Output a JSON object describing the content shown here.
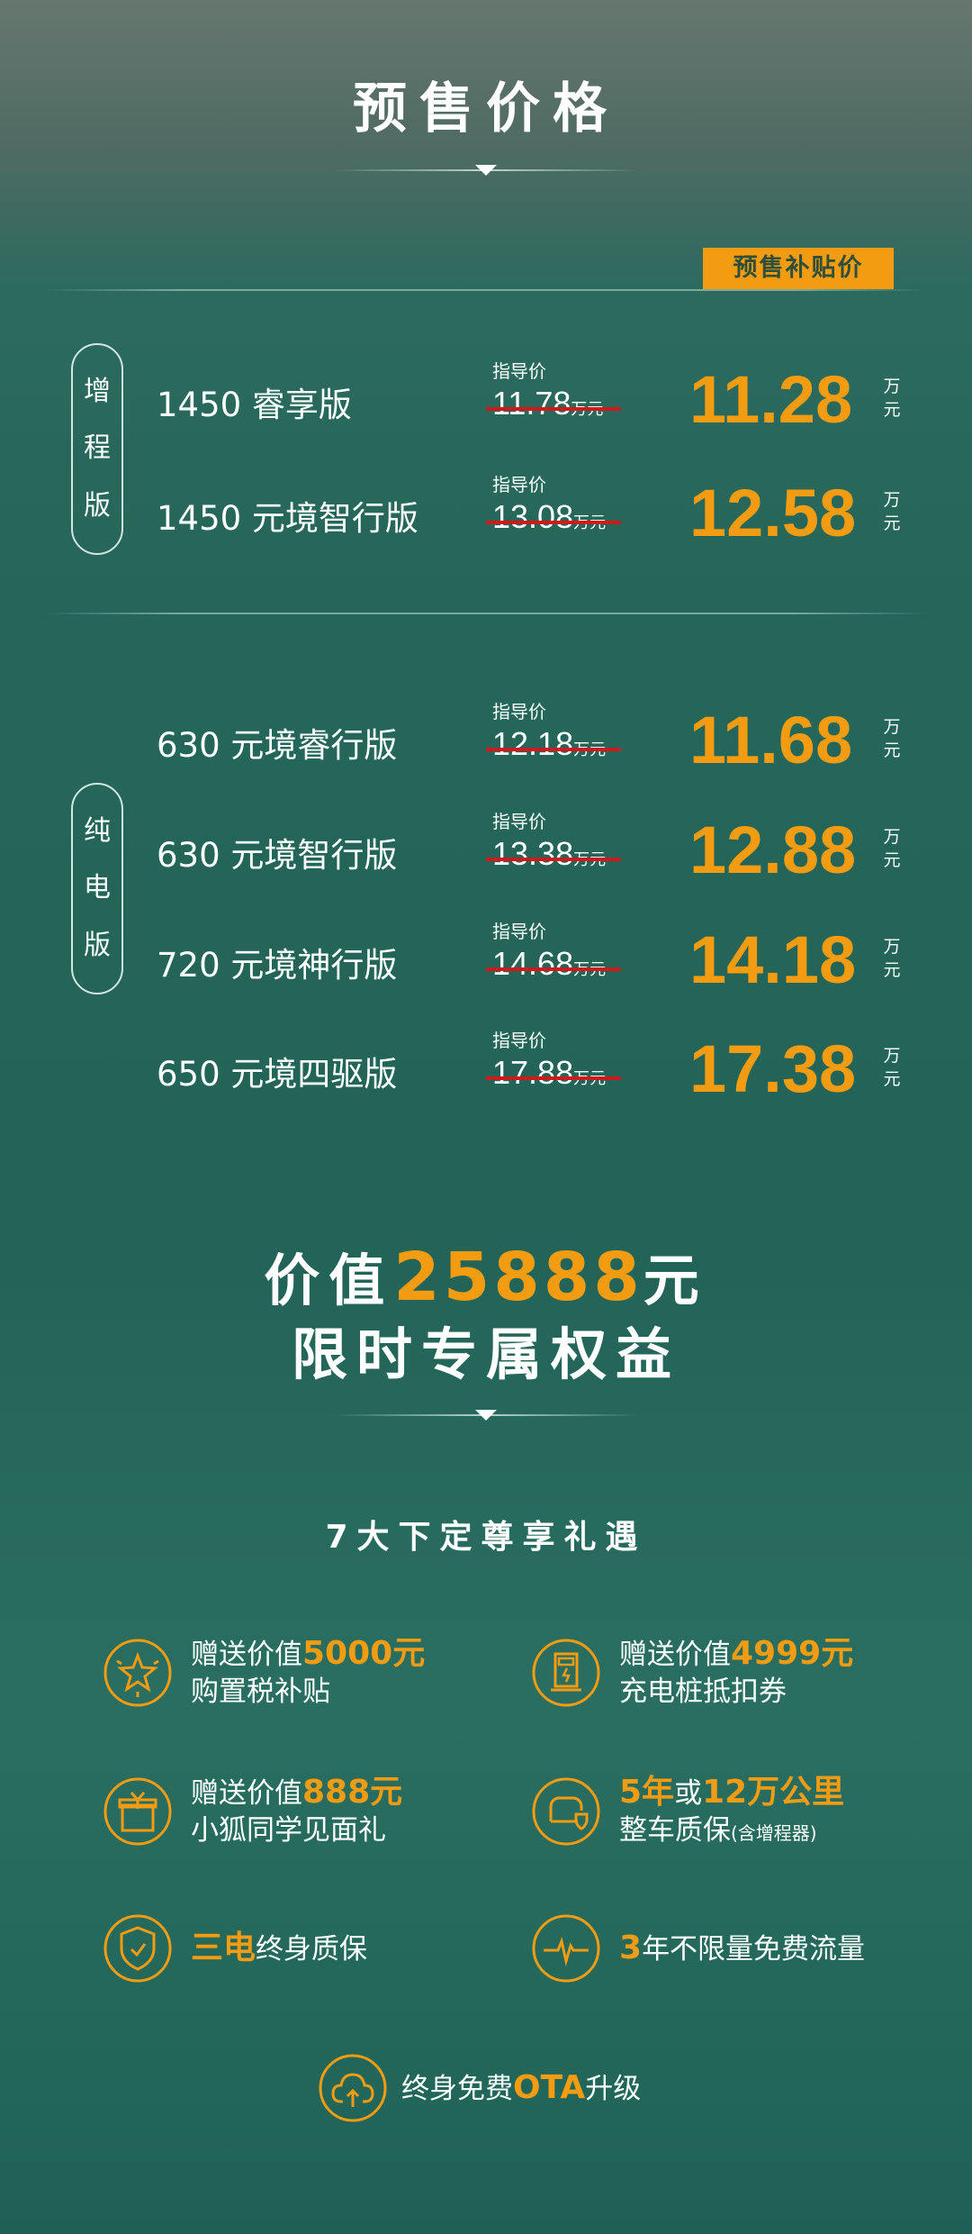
{
  "header": {
    "title": "预售价格"
  },
  "badge": "预售补贴价",
  "groups": [
    {
      "label": [
        "增",
        "程",
        "版"
      ]
    },
    {
      "label": [
        "纯",
        "电",
        "版"
      ]
    }
  ],
  "guide_label": "指导价",
  "unit": "万元",
  "unit_chars": [
    "万",
    "元"
  ],
  "rows": [
    {
      "model": "1450 睿享版",
      "guide": "11.78",
      "price": "11.28"
    },
    {
      "model": "1450 元境智行版",
      "guide": "13.08",
      "price": "12.58"
    },
    {
      "model": "630 元境睿行版",
      "guide": "12.18",
      "price": "11.68"
    },
    {
      "model": "630 元境智行版",
      "guide": "13.38",
      "price": "12.88"
    },
    {
      "model": "720 元境神行版",
      "guide": "14.68",
      "price": "14.18"
    },
    {
      "model": "650 元境四驱版",
      "guide": "17.88",
      "price": "17.38"
    }
  ],
  "value": {
    "prefix": "价值",
    "amount": "25888",
    "suffix": "元",
    "line2": "限时专属权益"
  },
  "benefits_title": "7大下定尊享礼遇",
  "benefits": [
    {
      "icon": "star-badge-icon",
      "lines": [
        [
          {
            "t": "赠送价值"
          },
          {
            "t": "5000元",
            "hl": true
          }
        ],
        [
          {
            "t": "购置税补贴"
          }
        ]
      ]
    },
    {
      "icon": "charging-pile-icon",
      "lines": [
        [
          {
            "t": "赠送价值"
          },
          {
            "t": "4999元",
            "hl": true
          }
        ],
        [
          {
            "t": "充电桩抵扣券"
          }
        ]
      ]
    },
    {
      "icon": "gift-box-icon",
      "lines": [
        [
          {
            "t": "赠送价值"
          },
          {
            "t": "888元",
            "hl": true
          }
        ],
        [
          {
            "t": "小狐同学见面礼"
          }
        ]
      ]
    },
    {
      "icon": "car-shield-icon",
      "lines": [
        [
          {
            "t": "5年",
            "hl": true
          },
          {
            "t": "或"
          },
          {
            "t": "12万公里",
            "hl": true
          }
        ],
        [
          {
            "t": "整车质保"
          },
          {
            "t": "(含增程器)",
            "sm": true
          }
        ]
      ]
    },
    {
      "icon": "shield-check-icon",
      "lines": [
        [
          {
            "t": "三电",
            "hl": true
          },
          {
            "t": "终身质保"
          }
        ]
      ]
    },
    {
      "icon": "pulse-icon",
      "lines": [
        [
          {
            "t": "3",
            "hl": true
          },
          {
            "t": "年不限量免费流量"
          }
        ]
      ]
    },
    {
      "icon": "cloud-upload-icon",
      "lines": [
        [
          {
            "t": "终身免费"
          },
          {
            "t": "OTA",
            "hl": true
          },
          {
            "t": "升级"
          }
        ]
      ]
    }
  ],
  "colors": {
    "accent": "#f39c12",
    "strike": "#d0191b",
    "background": "#246659"
  }
}
